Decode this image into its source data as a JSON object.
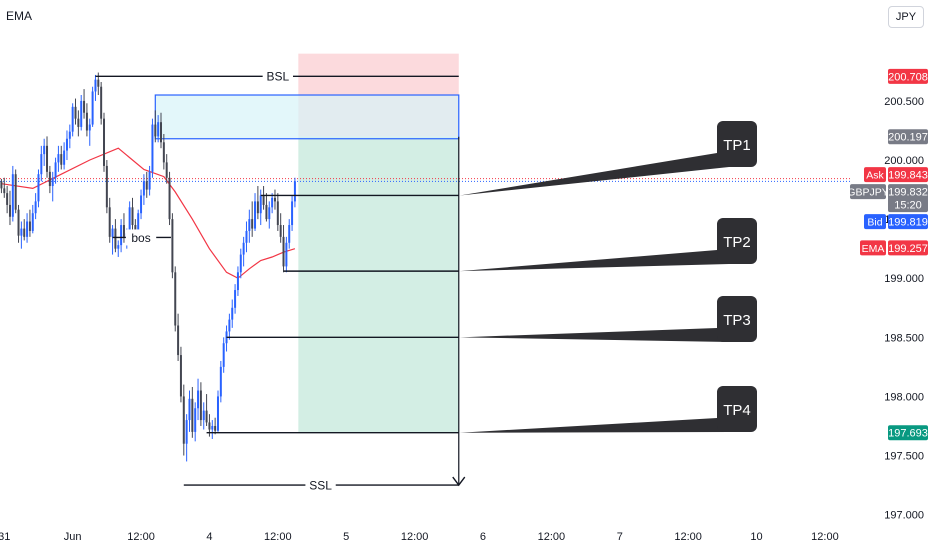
{
  "indicator_label": "EMA",
  "currency": "JPY",
  "chart_data": {
    "type": "candlestick",
    "symbol": "GBPJPY",
    "y_ticks": [
      200.5,
      200.0,
      199.5,
      199.0,
      198.5,
      198.0,
      197.5,
      197.0
    ],
    "y_tick_labels": [
      "200.500",
      "200.000",
      "199.500",
      "199.000",
      "198.500",
      "198.000",
      "197.500",
      "197.000"
    ],
    "ylim": [
      196.98,
      201.1
    ],
    "x_tick_labels": [
      "31",
      "Jun",
      "12:00",
      "4",
      "12:00",
      "5",
      "12:00",
      "6",
      "12:00",
      "7",
      "12:00",
      "10",
      "12:00"
    ],
    "x_ticks": [
      0,
      24,
      48,
      72,
      96,
      120,
      144,
      168,
      192,
      216,
      240,
      264,
      288
    ],
    "x_span": [
      -1.5,
      297.5
    ],
    "candles": [
      [
        -1,
        199.82,
        199.84,
        199.72,
        199.76
      ],
      [
        0,
        199.76,
        199.85,
        199.68,
        199.72
      ],
      [
        1,
        199.72,
        199.78,
        199.55,
        199.62
      ],
      [
        2,
        199.62,
        199.74,
        199.45,
        199.52
      ],
      [
        3,
        199.52,
        199.95,
        199.48,
        199.88
      ],
      [
        4,
        199.88,
        199.92,
        199.55,
        199.58
      ],
      [
        5,
        199.58,
        199.62,
        199.3,
        199.36
      ],
      [
        6,
        199.36,
        199.48,
        199.25,
        199.42
      ],
      [
        7,
        199.42,
        199.5,
        199.32,
        199.35
      ],
      [
        8,
        199.35,
        199.55,
        199.3,
        199.48
      ],
      [
        9,
        199.48,
        199.58,
        199.35,
        199.4
      ],
      [
        10,
        199.4,
        199.62,
        199.38,
        199.55
      ],
      [
        11,
        199.55,
        199.72,
        199.5,
        199.65
      ],
      [
        12,
        199.65,
        199.92,
        199.6,
        199.88
      ],
      [
        13,
        199.88,
        200.12,
        199.82,
        200.05
      ],
      [
        14,
        200.05,
        200.18,
        199.95,
        200.12
      ],
      [
        15,
        200.12,
        200.2,
        199.85,
        199.9
      ],
      [
        16,
        199.9,
        199.95,
        199.72,
        199.78
      ],
      [
        17,
        199.78,
        199.9,
        199.65,
        199.85
      ],
      [
        18,
        199.85,
        200.02,
        199.8,
        199.98
      ],
      [
        19,
        199.98,
        200.12,
        199.9,
        200.05
      ],
      [
        20,
        200.05,
        200.12,
        199.92,
        199.96
      ],
      [
        21,
        199.96,
        200.15,
        199.92,
        200.08
      ],
      [
        22,
        200.08,
        200.25,
        200.0,
        200.18
      ],
      [
        23,
        200.18,
        200.3,
        200.1,
        200.24
      ],
      [
        24,
        200.24,
        200.48,
        200.2,
        200.45
      ],
      [
        25,
        200.45,
        200.52,
        200.3,
        200.35
      ],
      [
        26,
        200.35,
        200.42,
        200.2,
        200.28
      ],
      [
        27,
        200.28,
        200.55,
        200.25,
        200.5
      ],
      [
        28,
        200.5,
        200.6,
        200.35,
        200.4
      ],
      [
        29,
        200.4,
        200.48,
        200.2,
        200.25
      ],
      [
        30,
        200.25,
        200.35,
        200.12,
        200.3
      ],
      [
        31,
        200.3,
        200.62,
        200.28,
        200.58
      ],
      [
        32,
        200.58,
        200.72,
        200.5,
        200.68
      ],
      [
        33,
        200.68,
        200.74,
        200.55,
        200.62
      ],
      [
        34,
        200.62,
        200.66,
        200.3,
        200.35
      ],
      [
        35,
        200.35,
        200.4,
        199.9,
        199.95
      ],
      [
        36,
        199.95,
        200.0,
        199.55,
        199.6
      ],
      [
        37,
        199.6,
        199.68,
        199.3,
        199.35
      ],
      [
        38,
        199.35,
        199.45,
        199.2,
        199.42
      ],
      [
        39,
        199.42,
        199.5,
        199.22,
        199.25
      ],
      [
        40,
        199.25,
        199.32,
        199.18,
        199.28
      ],
      [
        41,
        199.28,
        199.5,
        199.22,
        199.45
      ],
      [
        42,
        199.45,
        199.55,
        199.3,
        199.35
      ],
      [
        43,
        199.35,
        199.42,
        199.25,
        199.38
      ],
      [
        44,
        199.38,
        199.65,
        199.35,
        199.6
      ],
      [
        45,
        199.6,
        199.68,
        199.4,
        199.45
      ],
      [
        46,
        199.45,
        199.5,
        199.3,
        199.32
      ],
      [
        47,
        199.32,
        199.58,
        199.3,
        199.55
      ],
      [
        48,
        199.55,
        199.75,
        199.5,
        199.7
      ],
      [
        49,
        199.7,
        199.88,
        199.62,
        199.82
      ],
      [
        50,
        199.82,
        199.9,
        199.68,
        199.75
      ],
      [
        51,
        199.75,
        199.95,
        199.7,
        199.9
      ],
      [
        52,
        199.9,
        200.35,
        199.85,
        200.3
      ],
      [
        53,
        200.3,
        200.42,
        200.15,
        200.2
      ],
      [
        54,
        200.2,
        200.38,
        200.15,
        200.32
      ],
      [
        55,
        200.32,
        200.4,
        200.1,
        200.15
      ],
      [
        56,
        200.15,
        200.22,
        199.92,
        199.98
      ],
      [
        57,
        199.98,
        200.05,
        199.8,
        199.85
      ],
      [
        58,
        199.85,
        199.9,
        199.45,
        199.5
      ],
      [
        59,
        199.5,
        199.55,
        199.0,
        199.05
      ],
      [
        60,
        199.05,
        199.1,
        198.55,
        198.6
      ],
      [
        61,
        198.6,
        198.7,
        198.3,
        198.35
      ],
      [
        62,
        198.35,
        198.42,
        197.95,
        198.0
      ],
      [
        63,
        198.0,
        198.1,
        197.5,
        197.6
      ],
      [
        64,
        197.6,
        197.85,
        197.45,
        197.8
      ],
      [
        65,
        197.8,
        198.05,
        197.7,
        197.98
      ],
      [
        66,
        197.98,
        198.08,
        197.65,
        197.7
      ],
      [
        67,
        197.7,
        197.95,
        197.62,
        197.9
      ],
      [
        68,
        197.9,
        198.15,
        197.8,
        198.05
      ],
      [
        69,
        198.05,
        198.12,
        197.75,
        197.8
      ],
      [
        70,
        197.8,
        197.95,
        197.72,
        197.88
      ],
      [
        71,
        197.88,
        198.02,
        197.75,
        197.78
      ],
      [
        72,
        197.78,
        197.85,
        197.66,
        197.72
      ],
      [
        73,
        197.72,
        197.8,
        197.64,
        197.75
      ],
      [
        74,
        197.75,
        197.82,
        197.68,
        197.71
      ],
      [
        75,
        197.71,
        198.05,
        197.7,
        198.0
      ],
      [
        76,
        198.0,
        198.3,
        197.95,
        198.25
      ],
      [
        77,
        198.25,
        198.5,
        198.2,
        198.45
      ],
      [
        78,
        198.45,
        198.6,
        198.38,
        198.55
      ],
      [
        79,
        198.55,
        198.7,
        198.48,
        198.65
      ],
      [
        80,
        198.65,
        198.82,
        198.58,
        198.75
      ],
      [
        81,
        198.75,
        198.95,
        198.7,
        198.9
      ],
      [
        82,
        198.9,
        199.1,
        198.85,
        199.05
      ],
      [
        83,
        199.05,
        199.25,
        199.0,
        199.2
      ],
      [
        84,
        199.2,
        199.35,
        199.1,
        199.3
      ],
      [
        85,
        199.3,
        199.48,
        199.22,
        199.4
      ],
      [
        86,
        199.4,
        199.58,
        199.3,
        199.5
      ],
      [
        87,
        199.5,
        199.65,
        199.35,
        199.42
      ],
      [
        88,
        199.42,
        199.72,
        199.4,
        199.65
      ],
      [
        89,
        199.65,
        199.78,
        199.5,
        199.55
      ],
      [
        90,
        199.55,
        199.75,
        199.45,
        199.7
      ],
      [
        91,
        199.7,
        199.78,
        199.58,
        199.62
      ],
      [
        92,
        199.62,
        199.72,
        199.48,
        199.5
      ],
      [
        93,
        199.5,
        199.65,
        199.42,
        199.6
      ],
      [
        94,
        199.6,
        199.72,
        199.55,
        199.68
      ],
      [
        95,
        199.68,
        199.75,
        199.58,
        199.65
      ],
      [
        96,
        199.65,
        199.72,
        199.4,
        199.45
      ],
      [
        97,
        199.45,
        199.55,
        199.3,
        199.35
      ],
      [
        98,
        199.35,
        199.45,
        199.05,
        199.1
      ],
      [
        99,
        199.1,
        199.35,
        199.05,
        199.3
      ],
      [
        100,
        199.3,
        199.5,
        199.25,
        199.45
      ],
      [
        101,
        199.45,
        199.7,
        199.4,
        199.65
      ],
      [
        102,
        199.65,
        199.85,
        199.6,
        199.82
      ]
    ],
    "ema": [
      [
        -1,
        199.8
      ],
      [
        10,
        199.76
      ],
      [
        20,
        199.88
      ],
      [
        30,
        200.0
      ],
      [
        40,
        200.1
      ],
      [
        49,
        199.92
      ],
      [
        56,
        199.86
      ],
      [
        60,
        199.73
      ],
      [
        66,
        199.5
      ],
      [
        72,
        199.25
      ],
      [
        78,
        199.05
      ],
      [
        82,
        199.0
      ],
      [
        86,
        199.08
      ],
      [
        90,
        199.15
      ],
      [
        94,
        199.18
      ],
      [
        98,
        199.22
      ],
      [
        102,
        199.25
      ]
    ],
    "price_labels": [
      {
        "label": "",
        "value": "200.708",
        "color": "#f23645"
      },
      {
        "label": "",
        "value": "200.197",
        "color": "#787b86"
      },
      {
        "label": "Ask",
        "value": "199.843",
        "color": "#f23645"
      },
      {
        "label": "GBPJPY",
        "value": "199.832",
        "color": "#787b86",
        "countdown": "15:20"
      },
      {
        "label": "Bid",
        "value": "199.819",
        "color": "#2962ff"
      },
      {
        "label": "EMA",
        "value": "199.257",
        "color": "#f23645"
      },
      {
        "label": "",
        "value": "197.693",
        "color": "#089981"
      }
    ],
    "annotations": {
      "bsl": "BSL",
      "ssl": "SSL",
      "bos": "bos",
      "targets": [
        "TP1",
        "TP2",
        "TP3",
        "TP4"
      ]
    },
    "levels": {
      "bsl": 200.708,
      "ssl": 197.25,
      "bos": 199.345,
      "fvg_top": 200.55,
      "fvg_bottom": 200.18,
      "stop": 200.9,
      "entry": 200.197,
      "tp1": 199.7,
      "tp2": 199.06,
      "tp3": 198.5,
      "tp4": 197.693
    },
    "colors": {
      "up": "#2962ff",
      "down": "#434651",
      "ema": "#f23645",
      "profit_zone": "#d1ede3",
      "loss_zone": "#fbd3d7",
      "fvg": "#d7f3f8",
      "fvg_border": "#2962ff"
    }
  }
}
